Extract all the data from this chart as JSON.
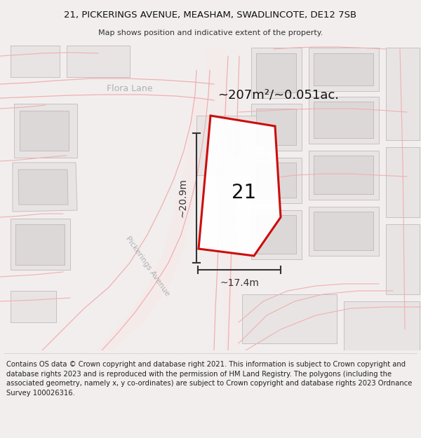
{
  "title_line1": "21, PICKERINGS AVENUE, MEASHAM, SWADLINCOTE, DE12 7SB",
  "title_line2": "Map shows position and indicative extent of the property.",
  "footer_text": "Contains OS data © Crown copyright and database right 2021. This information is subject to Crown copyright and database rights 2023 and is reproduced with the permission of HM Land Registry. The polygons (including the associated geometry, namely x, y co-ordinates) are subject to Crown copyright and database rights 2023 Ordnance Survey 100026316.",
  "area_text": "~207m²/~0.051ac.",
  "dim_width": "~17.4m",
  "dim_height": "~20.9m",
  "plot_number": "21",
  "bg_color": "#f2eeee",
  "map_bg": "#ffffff",
  "plot_outline_color": "#cc0000",
  "road_line_color": "#f0b0b0",
  "building_fill": "#e8e4e4",
  "building_edge": "#c8c0c0",
  "road_label_color": "#aaaaaa",
  "dim_color": "#333333",
  "title_fontsize": 9.5,
  "footer_fontsize": 7.2
}
